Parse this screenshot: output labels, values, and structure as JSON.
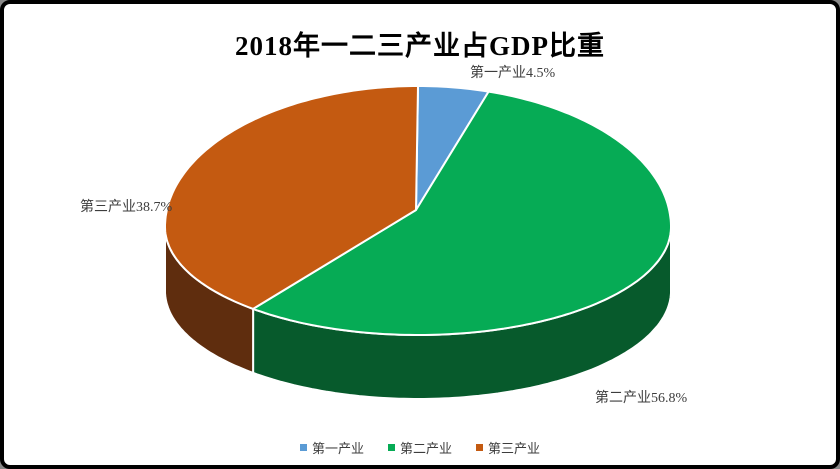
{
  "frame": {
    "background": "#ffffff",
    "border_color": "#000000"
  },
  "chart_data": {
    "type": "pie",
    "style": "3d",
    "title": "2018年一二三产业占GDP比重",
    "legend_position": "bottom",
    "grid": false,
    "categories": [
      "第一产业",
      "第二产业",
      "第三产业"
    ],
    "values": [
      4.5,
      56.8,
      38.7
    ],
    "slices": [
      {
        "name": "第一产业",
        "value": 4.5,
        "percent_label": "4.5%",
        "data_label": "第一产业4.5%",
        "color": "#5B9BD5"
      },
      {
        "name": "第二产业",
        "value": 56.8,
        "percent_label": "56.8%",
        "data_label": "第二产业56.8%",
        "color": "#06AB55",
        "side_color": "#075A2C"
      },
      {
        "name": "第三产业",
        "value": 38.7,
        "percent_label": "38.7%",
        "data_label": "第三产业38.7%",
        "color": "#C45A11",
        "side_color": "#5F2D0E"
      }
    ]
  }
}
